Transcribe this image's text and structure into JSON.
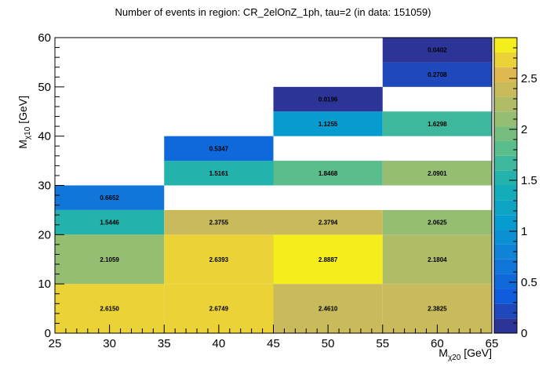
{
  "chart_data": {
    "type": "heatmap",
    "title": "Number of events in region: CR_2elOnZ_1ph, tau=2 (in data: 151059)",
    "xlabel": {
      "main": "M",
      "sub": "χ20",
      "unit": " [GeV]"
    },
    "ylabel": {
      "main": "M",
      "sub": "χ10",
      "unit": " [GeV]"
    },
    "xlim": [
      25,
      65
    ],
    "ylim": [
      0,
      60
    ],
    "zlim": [
      0,
      2.9
    ],
    "x_ticks": [
      "25",
      "30",
      "35",
      "40",
      "45",
      "50",
      "55",
      "60",
      "65"
    ],
    "y_ticks": [
      "0",
      "10",
      "20",
      "30",
      "40",
      "50",
      "60"
    ],
    "z_ticks": [
      "0",
      "0.5",
      "1",
      "1.5",
      "2",
      "2.5"
    ],
    "cells": [
      {
        "x": [
          25,
          35
        ],
        "y": [
          0,
          10
        ],
        "value": 2.615,
        "label": "2.6150"
      },
      {
        "x": [
          35,
          45
        ],
        "y": [
          0,
          10
        ],
        "value": 2.6749,
        "label": "2.6749"
      },
      {
        "x": [
          45,
          55
        ],
        "y": [
          0,
          10
        ],
        "value": 2.461,
        "label": "2.4610"
      },
      {
        "x": [
          55,
          65
        ],
        "y": [
          0,
          10
        ],
        "value": 2.3825,
        "label": "2.3825"
      },
      {
        "x": [
          25,
          35
        ],
        "y": [
          10,
          20
        ],
        "value": 2.1059,
        "label": "2.1059"
      },
      {
        "x": [
          35,
          45
        ],
        "y": [
          10,
          20
        ],
        "value": 2.6393,
        "label": "2.6393"
      },
      {
        "x": [
          45,
          55
        ],
        "y": [
          10,
          20
        ],
        "value": 2.8887,
        "label": "2.8887"
      },
      {
        "x": [
          55,
          65
        ],
        "y": [
          10,
          20
        ],
        "value": 2.1804,
        "label": "2.1804"
      },
      {
        "x": [
          25,
          35
        ],
        "y": [
          20,
          25
        ],
        "value": 1.5446,
        "label": "1.5446"
      },
      {
        "x": [
          35,
          45
        ],
        "y": [
          20,
          25
        ],
        "value": 2.3755,
        "label": "2.3755"
      },
      {
        "x": [
          45,
          55
        ],
        "y": [
          20,
          25
        ],
        "value": 2.3794,
        "label": "2.3794"
      },
      {
        "x": [
          55,
          65
        ],
        "y": [
          20,
          25
        ],
        "value": 2.0625,
        "label": "2.0625"
      },
      {
        "x": [
          25,
          35
        ],
        "y": [
          25,
          30
        ],
        "value": 0.6652,
        "label": "0.6652"
      },
      {
        "x": [
          35,
          45
        ],
        "y": [
          30,
          35
        ],
        "value": 1.5161,
        "label": "1.5161"
      },
      {
        "x": [
          45,
          55
        ],
        "y": [
          30,
          35
        ],
        "value": 1.8468,
        "label": "1.8468"
      },
      {
        "x": [
          55,
          65
        ],
        "y": [
          30,
          35
        ],
        "value": 2.0901,
        "label": "2.0901"
      },
      {
        "x": [
          35,
          45
        ],
        "y": [
          35,
          40
        ],
        "value": 0.5347,
        "label": "0.5347"
      },
      {
        "x": [
          45,
          55
        ],
        "y": [
          40,
          45
        ],
        "value": 1.1255,
        "label": "1.1255"
      },
      {
        "x": [
          55,
          65
        ],
        "y": [
          40,
          45
        ],
        "value": 1.6298,
        "label": "1.6298"
      },
      {
        "x": [
          45,
          55
        ],
        "y": [
          45,
          50
        ],
        "value": 0.0196,
        "label": "0.0196"
      },
      {
        "x": [
          55,
          65
        ],
        "y": [
          50,
          55
        ],
        "value": 0.2708,
        "label": "0.2708"
      },
      {
        "x": [
          55,
          65
        ],
        "y": [
          55,
          60
        ],
        "value": 0.0402,
        "label": "0.0402"
      }
    ],
    "grid": false,
    "colorbar": "right"
  }
}
